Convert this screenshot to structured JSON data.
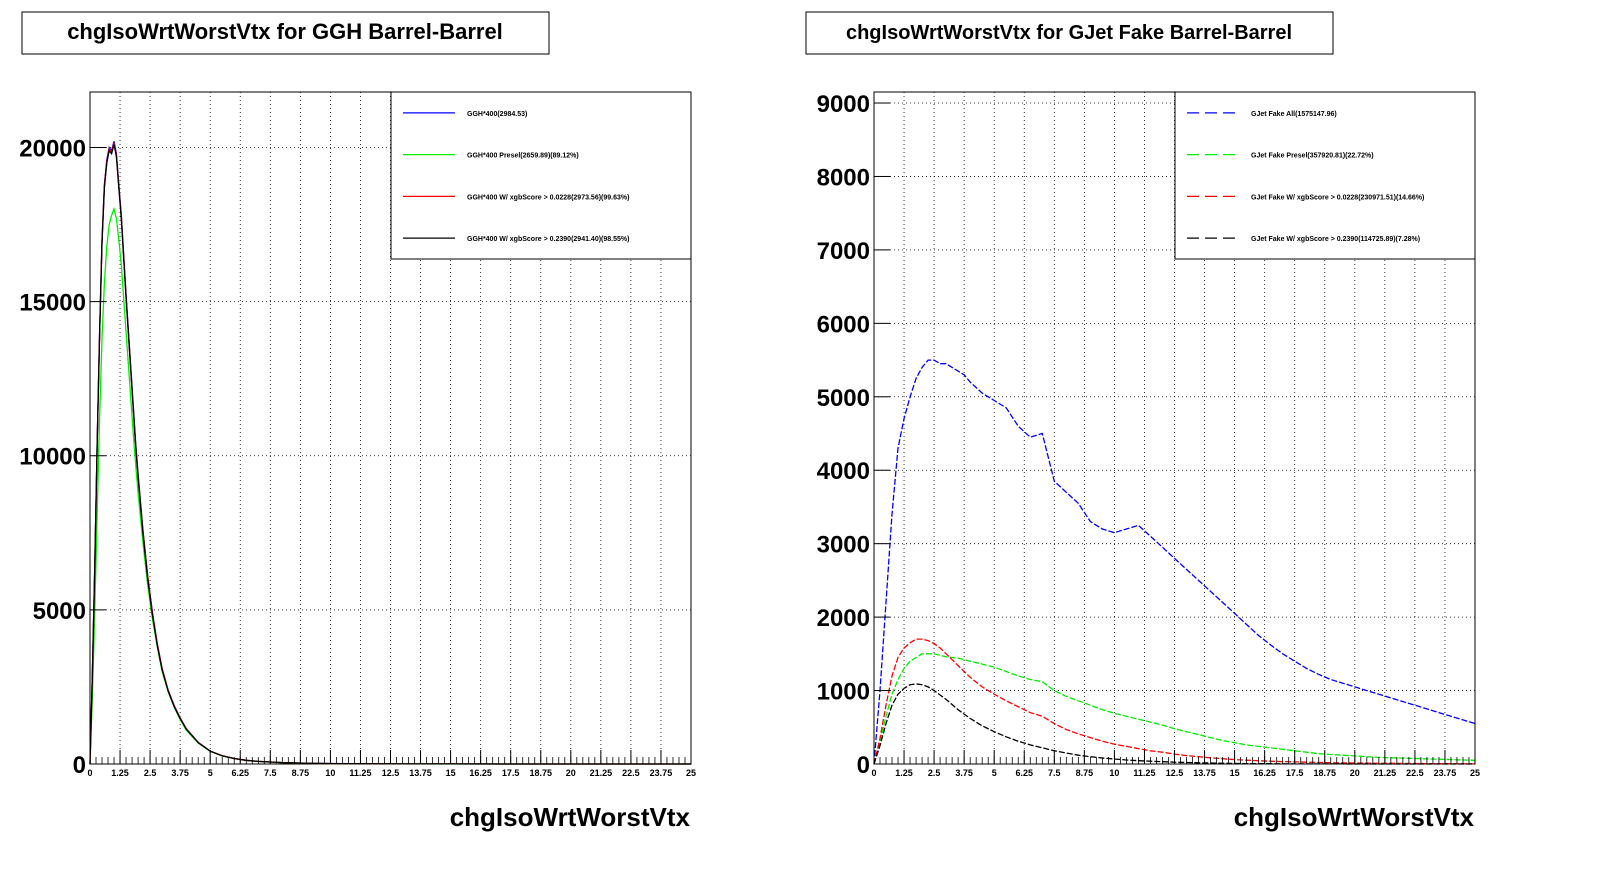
{
  "chart_data": [
    {
      "type": "line",
      "title": "chgIsoWrtWorstVtx for GGH Barrel-Barrel",
      "xlabel": "chgIsoWrtWorstVtx",
      "ylabel": "",
      "xlim": [
        0,
        25
      ],
      "ylim": [
        0,
        21800
      ],
      "grid": true,
      "legend_position": "top-right",
      "x_ticks": [
        "0",
        "1.25",
        "2.5",
        "3.75",
        "5",
        "6.25",
        "7.5",
        "8.75",
        "10",
        "11.25",
        "12.5",
        "13.75",
        "15",
        "16.25",
        "17.5",
        "18.75",
        "20",
        "21.25",
        "22.5",
        "23.75",
        "25"
      ],
      "y_ticks": [
        "0",
        "5000",
        "10000",
        "15000",
        "20000"
      ],
      "y_tick_values": [
        0,
        5000,
        10000,
        15000,
        20000
      ],
      "series": [
        {
          "name": "GGH*400(2984.53)",
          "color": "#0000ff",
          "dashed": false,
          "x": [
            0,
            0.1,
            0.2,
            0.3,
            0.4,
            0.5,
            0.6,
            0.7,
            0.8,
            0.9,
            1.0,
            1.1,
            1.2,
            1.3,
            1.4,
            1.5,
            1.6,
            1.7,
            1.8,
            1.9,
            2.0,
            2.2,
            2.4,
            2.6,
            2.8,
            3.0,
            3.25,
            3.5,
            3.75,
            4.0,
            4.5,
            5.0,
            5.5,
            6.0,
            6.5,
            7.0,
            8.0,
            9.0,
            10.0,
            11.0,
            12.0,
            13.0,
            15.0,
            17.5,
            20.0,
            25.0
          ],
          "y": [
            0,
            3000,
            6500,
            10500,
            14000,
            17000,
            18800,
            19600,
            20000,
            19900,
            20200,
            19800,
            18800,
            17800,
            16500,
            15200,
            14000,
            12800,
            11600,
            10400,
            9400,
            7600,
            6100,
            4900,
            3900,
            3100,
            2400,
            1900,
            1500,
            1150,
            700,
            420,
            270,
            180,
            120,
            85,
            45,
            25,
            15,
            9,
            6,
            4,
            2,
            1,
            0.5,
            0
          ]
        },
        {
          "name": "GGH*400 Presel(2659.89)(89.12%)",
          "color": "#00ee00",
          "dashed": false,
          "x": [
            0,
            0.1,
            0.2,
            0.3,
            0.4,
            0.5,
            0.6,
            0.7,
            0.8,
            0.9,
            1.0,
            1.1,
            1.2,
            1.3,
            1.4,
            1.5,
            1.6,
            1.7,
            1.8,
            1.9,
            2.0,
            2.2,
            2.4,
            2.6,
            2.8,
            3.0,
            3.25,
            3.5,
            3.75,
            4.0,
            4.5,
            5.0,
            5.5,
            6.0,
            6.5,
            7.0,
            8.0,
            9.0,
            10.0,
            11.0,
            12.0,
            13.0,
            15.0,
            17.5,
            20.0,
            25.0
          ],
          "y": [
            0,
            2200,
            5000,
            8200,
            11200,
            13800,
            15600,
            16800,
            17500,
            17800,
            18000,
            17700,
            17000,
            16200,
            15100,
            14000,
            12900,
            11800,
            10700,
            9700,
            8800,
            7200,
            5800,
            4700,
            3800,
            3000,
            2350,
            1850,
            1450,
            1100,
            680,
            410,
            260,
            175,
            115,
            80,
            42,
            24,
            14,
            8,
            5,
            3,
            1.5,
            1,
            0.5,
            0
          ]
        },
        {
          "name": "GGH*400 W/ xgbScore > 0.0228(2973.56)(99.63%)",
          "color": "#ff0000",
          "dashed": false,
          "x": [
            0,
            0.1,
            0.2,
            0.3,
            0.4,
            0.5,
            0.6,
            0.7,
            0.8,
            0.9,
            1.0,
            1.1,
            1.2,
            1.3,
            1.4,
            1.5,
            1.6,
            1.7,
            1.8,
            1.9,
            2.0,
            2.2,
            2.4,
            2.6,
            2.8,
            3.0,
            3.25,
            3.5,
            3.75,
            4.0,
            4.5,
            5.0,
            5.5,
            6.0,
            6.5,
            7.0,
            8.0,
            9.0,
            10.0,
            11.0,
            12.0,
            13.0,
            15.0,
            17.5,
            20.0,
            25.0
          ],
          "y": [
            0,
            2950,
            6450,
            10450,
            13950,
            16950,
            18750,
            19550,
            19950,
            19850,
            20150,
            19750,
            18750,
            17750,
            16450,
            15150,
            13950,
            12750,
            11550,
            10350,
            9350,
            7570,
            6080,
            4880,
            3885,
            3090,
            2390,
            1890,
            1495,
            1145,
            698,
            418,
            268,
            179,
            119,
            84,
            44,
            24,
            14,
            9,
            6,
            4,
            2,
            1,
            0.5,
            0
          ]
        },
        {
          "name": "GGH*400 W/ xgbScore > 0.2390(2941.40)(98.55%)",
          "color": "#000000",
          "dashed": false,
          "x": [
            0,
            0.1,
            0.2,
            0.3,
            0.4,
            0.5,
            0.6,
            0.7,
            0.8,
            0.9,
            1.0,
            1.1,
            1.2,
            1.3,
            1.4,
            1.5,
            1.6,
            1.7,
            1.8,
            1.9,
            2.0,
            2.2,
            2.4,
            2.6,
            2.8,
            3.0,
            3.25,
            3.5,
            3.75,
            4.0,
            4.5,
            5.0,
            5.5,
            6.0,
            6.5,
            7.0,
            8.0,
            9.0,
            10.0,
            11.0,
            12.0,
            13.0,
            15.0,
            17.5,
            20.0,
            25.0
          ],
          "y": [
            0,
            2900,
            6400,
            10400,
            13900,
            16900,
            18700,
            19500,
            19900,
            19800,
            20100,
            19700,
            18700,
            17700,
            16400,
            15100,
            13900,
            12700,
            11500,
            10300,
            9300,
            7500,
            6000,
            4820,
            3840,
            3060,
            2370,
            1870,
            1480,
            1135,
            690,
            415,
            265,
            177,
            118,
            83,
            44,
            24,
            14,
            9,
            6,
            4,
            2,
            1,
            0.5,
            0
          ]
        }
      ],
      "legend": [
        "GGH*400(2984.53)",
        "GGH*400 Presel(2659.89)(89.12%)",
        "GGH*400 W/ xgbScore > 0.0228(2973.56)(99.63%)",
        "GGH*400 W/ xgbScore > 0.2390(2941.40)(98.55%)"
      ]
    },
    {
      "type": "line",
      "title": "chgIsoWrtWorstVtx for GJet Fake Barrel-Barrel",
      "xlabel": "chgIsoWrtWorstVtx",
      "ylabel": "",
      "xlim": [
        0,
        25
      ],
      "ylim": [
        0,
        9150
      ],
      "grid": true,
      "legend_position": "top-right",
      "x_ticks": [
        "0",
        "1.25",
        "2.5",
        "3.75",
        "5",
        "6.25",
        "7.5",
        "8.75",
        "10",
        "11.25",
        "12.5",
        "13.75",
        "15",
        "16.25",
        "17.5",
        "18.75",
        "20",
        "21.25",
        "22.5",
        "23.75",
        "25"
      ],
      "y_ticks": [
        "0",
        "1000",
        "2000",
        "3000",
        "4000",
        "5000",
        "6000",
        "7000",
        "8000",
        "9000"
      ],
      "y_tick_values": [
        0,
        1000,
        2000,
        3000,
        4000,
        5000,
        6000,
        7000,
        8000,
        9000
      ],
      "series": [
        {
          "name": "GJet Fake All(1575147.96)",
          "color": "#0000ff",
          "dashed": true,
          "x": [
            0,
            0.25,
            0.5,
            0.75,
            1.0,
            1.25,
            1.5,
            1.75,
            2.0,
            2.25,
            2.5,
            2.75,
            3.0,
            3.25,
            3.5,
            3.75,
            4.0,
            4.5,
            5.0,
            5.5,
            6.0,
            6.5,
            7.0,
            7.5,
            8.0,
            8.5,
            9.0,
            9.5,
            10.0,
            10.5,
            11.0,
            11.5,
            12.0,
            12.5,
            13.0,
            13.5,
            14.0,
            14.5,
            15.0,
            15.5,
            16.0,
            16.5,
            17.0,
            17.5,
            18.0,
            18.5,
            19.0,
            19.5,
            20.0,
            20.5,
            21.0,
            21.5,
            22.0,
            22.5,
            23.0,
            23.5,
            24.0,
            24.5,
            25.0
          ],
          "y": [
            0,
            1000,
            2200,
            3400,
            4300,
            4700,
            5000,
            5250,
            5400,
            5500,
            5500,
            5450,
            5450,
            5400,
            5350,
            5300,
            5200,
            5050,
            4950,
            4850,
            4600,
            4450,
            4500,
            3850,
            3700,
            3550,
            3300,
            3200,
            3150,
            3200,
            3250,
            3100,
            2950,
            2800,
            2650,
            2500,
            2350,
            2200,
            2050,
            1900,
            1750,
            1620,
            1500,
            1400,
            1300,
            1220,
            1150,
            1100,
            1050,
            1000,
            950,
            900,
            850,
            800,
            750,
            700,
            650,
            600,
            550
          ]
        },
        {
          "name": "GJet Fake Presel(357920.81)(22.72%)",
          "color": "#00ee00",
          "dashed": true,
          "x": [
            0,
            0.25,
            0.5,
            0.75,
            1.0,
            1.25,
            1.5,
            1.75,
            2.0,
            2.25,
            2.5,
            2.75,
            3.0,
            3.25,
            3.5,
            3.75,
            4.0,
            4.5,
            5.0,
            5.5,
            6.0,
            6.5,
            7.0,
            7.5,
            8.0,
            8.5,
            9.0,
            9.5,
            10.0,
            10.5,
            11.0,
            11.5,
            12.0,
            12.5,
            13.0,
            13.5,
            14.0,
            14.5,
            15.0,
            15.5,
            16.0,
            16.5,
            17.0,
            17.5,
            18.0,
            18.5,
            19.0,
            19.5,
            20.0,
            20.5,
            21.0,
            21.5,
            22.0,
            22.5,
            23.0,
            23.5,
            24.0,
            24.5,
            25.0
          ],
          "y": [
            0,
            300,
            650,
            950,
            1150,
            1300,
            1400,
            1450,
            1500,
            1500,
            1500,
            1480,
            1460,
            1450,
            1440,
            1420,
            1400,
            1360,
            1320,
            1260,
            1200,
            1150,
            1120,
            1000,
            920,
            860,
            800,
            740,
            690,
            650,
            610,
            570,
            530,
            480,
            440,
            400,
            360,
            320,
            290,
            260,
            240,
            220,
            200,
            180,
            160,
            140,
            130,
            120,
            110,
            100,
            90,
            85,
            80,
            75,
            70,
            65,
            60,
            55,
            50
          ]
        },
        {
          "name": "GJet Fake W/ xgbScore > 0.0228(230971.51)(14.66%)",
          "color": "#ff0000",
          "dashed": true,
          "x": [
            0,
            0.25,
            0.5,
            0.75,
            1.0,
            1.25,
            1.5,
            1.75,
            2.0,
            2.25,
            2.5,
            2.75,
            3.0,
            3.25,
            3.5,
            3.75,
            4.0,
            4.5,
            5.0,
            5.5,
            6.0,
            6.5,
            7.0,
            7.5,
            8.0,
            8.5,
            9.0,
            9.5,
            10.0,
            10.5,
            11.0,
            11.5,
            12.0,
            12.5,
            13.0,
            13.5,
            14.0,
            14.5,
            15.0,
            15.5,
            16.0,
            16.5,
            17.0,
            17.5,
            18.0,
            18.5,
            19.0,
            19.5,
            20.0,
            20.5,
            21.0,
            21.5,
            22.0,
            22.5,
            23.0,
            23.5,
            24.0,
            24.5,
            25.0
          ],
          "y": [
            0,
            350,
            800,
            1200,
            1450,
            1580,
            1650,
            1700,
            1700,
            1680,
            1640,
            1580,
            1500,
            1420,
            1340,
            1260,
            1180,
            1050,
            950,
            860,
            780,
            700,
            650,
            550,
            470,
            410,
            360,
            310,
            270,
            240,
            210,
            180,
            160,
            135,
            115,
            100,
            85,
            72,
            60,
            52,
            45,
            38,
            32,
            28,
            24,
            20,
            18,
            15,
            13,
            11,
            10,
            9,
            8,
            7,
            6,
            5,
            4,
            3,
            2
          ]
        },
        {
          "name": "GJet Fake W/ xgbScore > 0.2390(114725.89)(7.28%)",
          "color": "#000000",
          "dashed": true,
          "x": [
            0,
            0.25,
            0.5,
            0.75,
            1.0,
            1.25,
            1.5,
            1.75,
            2.0,
            2.25,
            2.5,
            2.75,
            3.0,
            3.25,
            3.5,
            3.75,
            4.0,
            4.5,
            5.0,
            5.5,
            6.0,
            6.5,
            7.0,
            7.5,
            8.0,
            8.5,
            9.0,
            9.5,
            10.0,
            10.5,
            11.0,
            11.5,
            12.0,
            12.5,
            13.0,
            13.5,
            14.0,
            14.5,
            15.0,
            15.5,
            16.0,
            16.5,
            17.0,
            17.5,
            18.0,
            18.5,
            19.0,
            19.5,
            20.0,
            20.5,
            21.0,
            21.5,
            22.0,
            22.5,
            23.0,
            23.5,
            24.0,
            24.5,
            25.0
          ],
          "y": [
            0,
            250,
            550,
            800,
            950,
            1030,
            1080,
            1090,
            1080,
            1050,
            1000,
            940,
            880,
            810,
            740,
            680,
            620,
            520,
            440,
            370,
            310,
            260,
            220,
            180,
            150,
            120,
            100,
            82,
            68,
            55,
            45,
            38,
            31,
            25,
            20,
            16,
            13,
            10,
            8,
            6,
            5,
            4,
            3,
            2,
            2,
            1,
            1,
            1,
            0,
            0,
            0,
            0,
            0,
            0,
            0,
            0,
            0,
            0,
            0
          ]
        }
      ],
      "legend": [
        "GJet Fake All(1575147.96)",
        "GJet Fake Presel(357920.81)(22.72%)",
        "GJet Fake W/ xgbScore > 0.0228(230971.51)(14.66%)",
        "GJet Fake W/ xgbScore > 0.2390(114725.89)(7.28%)"
      ]
    }
  ]
}
